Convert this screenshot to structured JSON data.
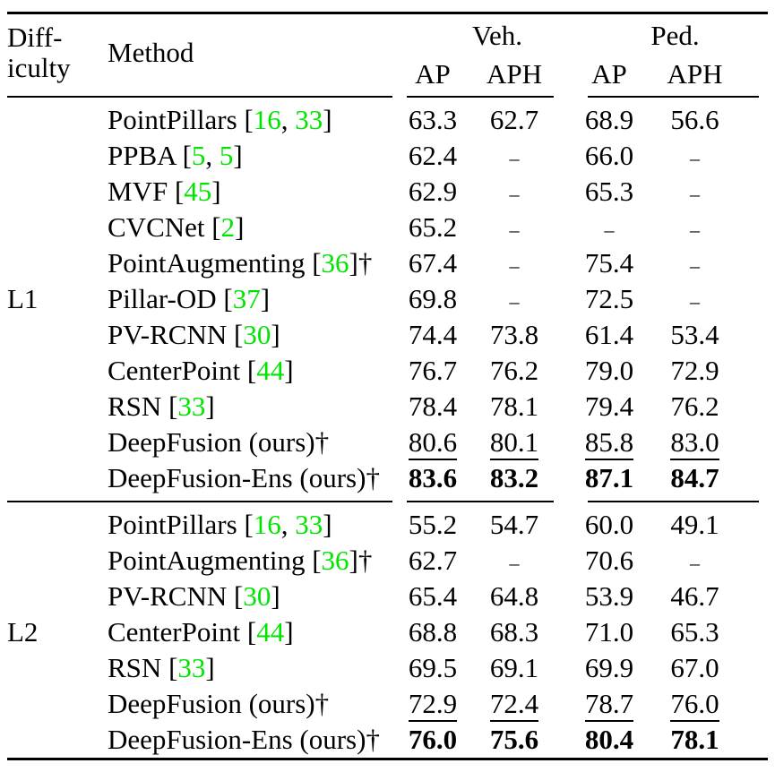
{
  "table": {
    "header": {
      "difficulty_lines": [
        "Diff-",
        "iculty"
      ],
      "method": "Method",
      "groups": [
        {
          "label": "Veh."
        },
        {
          "label": "Ped."
        }
      ],
      "subheaders": [
        "AP",
        "APH",
        "AP",
        "APH"
      ]
    },
    "colors": {
      "text": "#000000",
      "citation_green": "#00e400"
    },
    "missing_value": "–",
    "sections": [
      {
        "difficulty": "L1",
        "rows": [
          {
            "method": "PointPillars",
            "cites": [
              "16",
              "33"
            ],
            "dagger": false,
            "values": [
              "63.3",
              "62.7",
              "68.9",
              "56.6"
            ],
            "value_style": "normal"
          },
          {
            "method": "PPBA",
            "cites": [
              "5",
              "5"
            ],
            "dagger": false,
            "values": [
              "62.4",
              "–",
              "66.0",
              "–"
            ],
            "value_style": "normal"
          },
          {
            "method": "MVF",
            "cites": [
              "45"
            ],
            "dagger": false,
            "values": [
              "62.9",
              "–",
              "65.3",
              "–"
            ],
            "value_style": "normal"
          },
          {
            "method": "CVCNet",
            "cites": [
              "2"
            ],
            "dagger": false,
            "values": [
              "65.2",
              "–",
              "–",
              "–"
            ],
            "value_style": "normal"
          },
          {
            "method": "PointAugmenting",
            "cites": [
              "36"
            ],
            "dagger": true,
            "values": [
              "67.4",
              "–",
              "75.4",
              "–"
            ],
            "value_style": "normal"
          },
          {
            "method": "Pillar-OD",
            "cites": [
              "37"
            ],
            "dagger": false,
            "values": [
              "69.8",
              "–",
              "72.5",
              "–"
            ],
            "value_style": "normal"
          },
          {
            "method": "PV-RCNN",
            "cites": [
              "30"
            ],
            "dagger": false,
            "values": [
              "74.4",
              "73.8",
              "61.4",
              "53.4"
            ],
            "value_style": "normal"
          },
          {
            "method": "CenterPoint",
            "cites": [
              "44"
            ],
            "dagger": false,
            "values": [
              "76.7",
              "76.2",
              "79.0",
              "72.9"
            ],
            "value_style": "normal"
          },
          {
            "method": "RSN",
            "cites": [
              "33"
            ],
            "dagger": false,
            "values": [
              "78.4",
              "78.1",
              "79.4",
              "76.2"
            ],
            "value_style": "normal"
          },
          {
            "method": "DeepFusion (ours)",
            "cites": [],
            "dagger": true,
            "values": [
              "80.6",
              "80.1",
              "85.8",
              "83.0"
            ],
            "value_style": "underline"
          },
          {
            "method": "DeepFusion-Ens (ours)",
            "cites": [],
            "dagger": true,
            "values": [
              "83.6",
              "83.2",
              "87.1",
              "84.7"
            ],
            "value_style": "bold"
          }
        ]
      },
      {
        "difficulty": "L2",
        "rows": [
          {
            "method": "PointPillars",
            "cites": [
              "16",
              "33"
            ],
            "dagger": false,
            "values": [
              "55.2",
              "54.7",
              "60.0",
              "49.1"
            ],
            "value_style": "normal"
          },
          {
            "method": "PointAugmenting",
            "cites": [
              "36"
            ],
            "dagger": true,
            "values": [
              "62.7",
              "–",
              "70.6",
              "–"
            ],
            "value_style": "normal"
          },
          {
            "method": "PV-RCNN",
            "cites": [
              "30"
            ],
            "dagger": false,
            "values": [
              "65.4",
              "64.8",
              "53.9",
              "46.7"
            ],
            "value_style": "normal"
          },
          {
            "method": "CenterPoint",
            "cites": [
              "44"
            ],
            "dagger": false,
            "values": [
              "68.8",
              "68.3",
              "71.0",
              "65.3"
            ],
            "value_style": "normal"
          },
          {
            "method": "RSN",
            "cites": [
              "33"
            ],
            "dagger": false,
            "values": [
              "69.5",
              "69.1",
              "69.9",
              "67.0"
            ],
            "value_style": "normal"
          },
          {
            "method": "DeepFusion (ours)",
            "cites": [],
            "dagger": true,
            "values": [
              "72.9",
              "72.4",
              "78.7",
              "76.0"
            ],
            "value_style": "underline"
          },
          {
            "method": "DeepFusion-Ens (ours)",
            "cites": [],
            "dagger": true,
            "values": [
              "76.0",
              "75.6",
              "80.4",
              "78.1"
            ],
            "value_style": "bold"
          }
        ]
      }
    ]
  }
}
